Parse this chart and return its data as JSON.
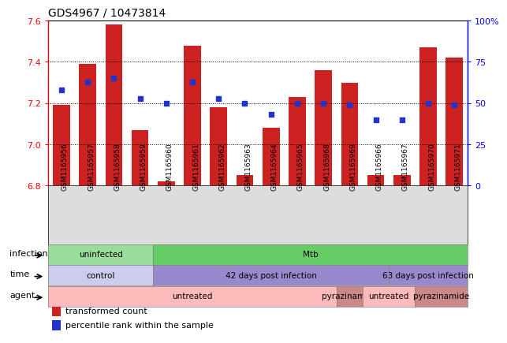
{
  "title": "GDS4967 / 10473814",
  "samples": [
    "GSM1165956",
    "GSM1165957",
    "GSM1165958",
    "GSM1165959",
    "GSM1165960",
    "GSM1165961",
    "GSM1165962",
    "GSM1165963",
    "GSM1165964",
    "GSM1165965",
    "GSM1165968",
    "GSM1165969",
    "GSM1165966",
    "GSM1165967",
    "GSM1165970",
    "GSM1165971"
  ],
  "bar_values": [
    7.19,
    7.39,
    7.58,
    7.07,
    6.82,
    7.48,
    7.18,
    6.85,
    7.08,
    7.23,
    7.36,
    7.3,
    6.85,
    6.85,
    7.47,
    7.42
  ],
  "dot_values": [
    58,
    63,
    65,
    53,
    50,
    63,
    53,
    50,
    43,
    50,
    50,
    49,
    40,
    40,
    50,
    49
  ],
  "ylim_left": [
    6.8,
    7.6
  ],
  "ylim_right": [
    0,
    100
  ],
  "yticks_left": [
    6.8,
    7.0,
    7.2,
    7.4,
    7.6
  ],
  "yticks_right": [
    0,
    25,
    50,
    75,
    100
  ],
  "ytick_labels_right": [
    "0",
    "25",
    "50",
    "75",
    "100%"
  ],
  "bar_color": "#cc2222",
  "dot_color": "#2233cc",
  "bar_bottom": 6.8,
  "annotation_rows": [
    {
      "label": "infection",
      "segments": [
        {
          "text": "uninfected",
          "start": 0,
          "end": 4,
          "color": "#99dd99"
        },
        {
          "text": "Mtb",
          "start": 4,
          "end": 16,
          "color": "#66cc66"
        }
      ]
    },
    {
      "label": "time",
      "segments": [
        {
          "text": "control",
          "start": 0,
          "end": 4,
          "color": "#ccccee"
        },
        {
          "text": "42 days post infection",
          "start": 4,
          "end": 13,
          "color": "#9988cc"
        },
        {
          "text": "63 days post infection",
          "start": 13,
          "end": 16,
          "color": "#9988cc"
        }
      ]
    },
    {
      "label": "agent",
      "segments": [
        {
          "text": "untreated",
          "start": 0,
          "end": 11,
          "color": "#ffbbbb"
        },
        {
          "text": "pyrazinamide",
          "start": 11,
          "end": 12,
          "color": "#cc8888"
        },
        {
          "text": "untreated",
          "start": 12,
          "end": 14,
          "color": "#ffbbbb"
        },
        {
          "text": "pyrazinamide",
          "start": 14,
          "end": 16,
          "color": "#cc8888"
        }
      ]
    }
  ],
  "legend_items": [
    {
      "color": "#cc2222",
      "label": "transformed count"
    },
    {
      "color": "#2233cc",
      "label": "percentile rank within the sample"
    }
  ]
}
